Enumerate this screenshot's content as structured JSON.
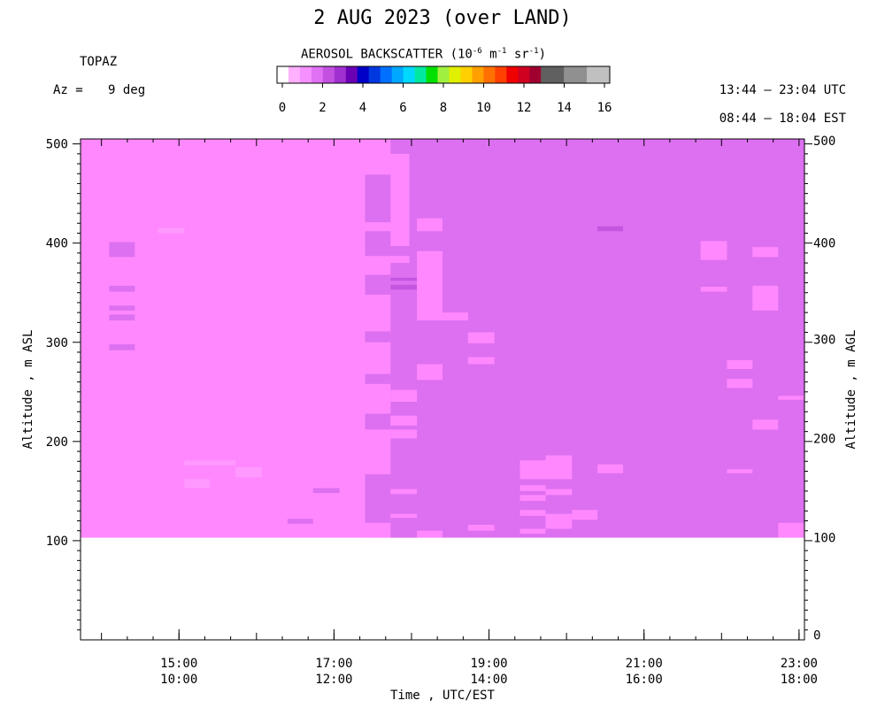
{
  "header": {
    "title": "2 AUG 2023 (over LAND)",
    "instrument": "TOPAZ",
    "azimuth_label": "Az =",
    "azimuth_value": "9 deg",
    "utc_range": "13:44 – 23:04 UTC",
    "est_range": "08:44 – 18:04 EST"
  },
  "colorbar": {
    "title_main": "AEROSOL BACKSCATTER (10",
    "title_exp1": "-6",
    "title_mid1": " m",
    "title_exp2": "-1",
    "title_mid2": " sr",
    "title_exp3": "-1",
    "title_end": ")",
    "tick_labels": [
      "0",
      "2",
      "4",
      "6",
      "8",
      "10",
      "12",
      "14",
      "16"
    ],
    "colors": [
      "#ffffff",
      "#ffb0ff",
      "#f490ff",
      "#e070f4",
      "#c450e0",
      "#a030d0",
      "#6a00b4",
      "#0000c8",
      "#0038e0",
      "#0070ff",
      "#00a8ff",
      "#00d8ff",
      "#00e8a0",
      "#00e000",
      "#a0f040",
      "#e0f000",
      "#ffd000",
      "#ffa000",
      "#ff7000",
      "#ff4000",
      "#f00000",
      "#d00020",
      "#a00030",
      "#606060",
      "#606060",
      "#909090",
      "#909090",
      "#c0c0c0",
      "#c0c0c0"
    ]
  },
  "axes": {
    "xlabel": "Time , UTC/EST",
    "ylabel_left": "Altitude , m ASL",
    "ylabel_right": "Altitude , m AGL",
    "x_ticks_utc": [
      "15:00",
      "17:00",
      "19:00",
      "21:00",
      "23:00"
    ],
    "x_ticks_est": [
      "10:00",
      "12:00",
      "14:00",
      "16:00",
      "18:00"
    ],
    "y_ticks_left": [
      "100",
      "200",
      "300",
      "400",
      "500"
    ],
    "y_ticks_right": [
      "0",
      "100",
      "200",
      "300",
      "400",
      "500"
    ]
  },
  "chart_data": {
    "type": "heatmap",
    "title": "2 AUG 2023 (over LAND)",
    "xlabel": "Time , UTC/EST",
    "ylabel": "Altitude , m ASL",
    "ylabel_right": "Altitude , m AGL",
    "x_unit": "hours UTC",
    "xlim": [
      13.73,
      23.07
    ],
    "ylim": [
      0,
      505
    ],
    "ylim_right": [
      0,
      505
    ],
    "data_bottom_m": 103,
    "colorbar_range": [
      0,
      16
    ],
    "colors": {
      "base": "#ff88ff",
      "medium": "#dd70f0",
      "dark": "#c455e0",
      "light": "#ff99ff"
    },
    "base_layer": [
      {
        "x0": 13.73,
        "x1": 17.97,
        "color": "base"
      },
      {
        "x0": 17.97,
        "x1": 23.07,
        "color": "medium"
      }
    ],
    "cells": [
      {
        "x0": 17.4,
        "x1": 17.73,
        "y0": 103,
        "y1": 118,
        "color": "base"
      },
      {
        "x0": 17.4,
        "x1": 17.73,
        "y0": 118,
        "y1": 167,
        "color": "medium"
      },
      {
        "x0": 17.4,
        "x1": 17.73,
        "y0": 228,
        "y1": 212,
        "color": "medium"
      },
      {
        "x0": 17.4,
        "x1": 17.73,
        "y0": 258,
        "y1": 268,
        "color": "medium"
      },
      {
        "x0": 17.4,
        "x1": 17.73,
        "y0": 300,
        "y1": 311,
        "color": "medium"
      },
      {
        "x0": 17.4,
        "x1": 17.73,
        "y0": 348,
        "y1": 368,
        "color": "medium"
      },
      {
        "x0": 17.4,
        "x1": 17.73,
        "y0": 387,
        "y1": 412,
        "color": "medium"
      },
      {
        "x0": 17.4,
        "x1": 17.73,
        "y0": 421,
        "y1": 469,
        "color": "medium"
      },
      {
        "x0": 17.73,
        "x1": 18.07,
        "y0": 103,
        "y1": 380,
        "color": "medium"
      },
      {
        "x0": 17.73,
        "x1": 18.07,
        "y0": 490,
        "y1": 505,
        "color": "medium"
      },
      {
        "x0": 17.73,
        "x1": 18.07,
        "y0": 387,
        "y1": 397,
        "color": "medium"
      },
      {
        "x0": 17.73,
        "x1": 18.07,
        "y0": 240,
        "y1": 252,
        "color": "base"
      },
      {
        "x0": 17.73,
        "x1": 18.07,
        "y0": 216,
        "y1": 226,
        "color": "base"
      },
      {
        "x0": 17.73,
        "x1": 18.07,
        "y0": 203,
        "y1": 212,
        "color": "base"
      },
      {
        "x0": 17.73,
        "x1": 18.07,
        "y0": 147,
        "y1": 152,
        "color": "base"
      },
      {
        "x0": 17.73,
        "x1": 18.07,
        "y0": 123,
        "y1": 127,
        "color": "base"
      },
      {
        "x0": 17.73,
        "x1": 18.07,
        "y0": 353,
        "y1": 358,
        "color": "dark"
      },
      {
        "x0": 17.73,
        "x1": 18.07,
        "y0": 362,
        "y1": 365,
        "color": "dark"
      },
      {
        "x0": 18.07,
        "x1": 18.4,
        "y0": 103,
        "y1": 110,
        "color": "base"
      },
      {
        "x0": 18.07,
        "x1": 18.4,
        "y0": 262,
        "y1": 278,
        "color": "base"
      },
      {
        "x0": 18.07,
        "x1": 18.4,
        "y0": 322,
        "y1": 392,
        "color": "base"
      },
      {
        "x0": 18.07,
        "x1": 18.4,
        "y0": 412,
        "y1": 425,
        "color": "base"
      },
      {
        "x0": 18.4,
        "x1": 18.73,
        "y0": 322,
        "y1": 330,
        "color": "base"
      },
      {
        "x0": 18.73,
        "x1": 19.07,
        "y0": 278,
        "y1": 285,
        "color": "base"
      },
      {
        "x0": 18.73,
        "x1": 19.07,
        "y0": 299,
        "y1": 310,
        "color": "base"
      },
      {
        "x0": 18.73,
        "x1": 19.07,
        "y0": 110,
        "y1": 116,
        "color": "base"
      },
      {
        "x0": 14.1,
        "x1": 14.43,
        "y0": 292,
        "y1": 298,
        "color": "medium"
      },
      {
        "x0": 14.1,
        "x1": 14.43,
        "y0": 322,
        "y1": 328,
        "color": "medium"
      },
      {
        "x0": 14.1,
        "x1": 14.43,
        "y0": 332,
        "y1": 337,
        "color": "medium"
      },
      {
        "x0": 14.1,
        "x1": 14.43,
        "y0": 351,
        "y1": 357,
        "color": "medium"
      },
      {
        "x0": 14.1,
        "x1": 14.43,
        "y0": 386,
        "y1": 401,
        "color": "medium"
      },
      {
        "x0": 14.73,
        "x1": 15.07,
        "y0": 410,
        "y1": 415,
        "color": "light"
      },
      {
        "x0": 15.07,
        "x1": 15.4,
        "y0": 153,
        "y1": 162,
        "color": "light"
      },
      {
        "x0": 15.07,
        "x1": 15.73,
        "y0": 176,
        "y1": 181,
        "color": "light"
      },
      {
        "x0": 15.73,
        "x1": 16.07,
        "y0": 164,
        "y1": 174,
        "color": "light"
      },
      {
        "x0": 16.4,
        "x1": 16.73,
        "y0": 117,
        "y1": 122,
        "color": "medium"
      },
      {
        "x0": 16.73,
        "x1": 17.07,
        "y0": 148,
        "y1": 153,
        "color": "medium"
      },
      {
        "x0": 19.4,
        "x1": 19.73,
        "y0": 107,
        "y1": 112,
        "color": "base"
      },
      {
        "x0": 19.4,
        "x1": 19.73,
        "y0": 125,
        "y1": 131,
        "color": "base"
      },
      {
        "x0": 19.4,
        "x1": 19.73,
        "y0": 140,
        "y1": 146,
        "color": "base"
      },
      {
        "x0": 19.4,
        "x1": 19.73,
        "y0": 150,
        "y1": 156,
        "color": "base"
      },
      {
        "x0": 19.4,
        "x1": 19.73,
        "y0": 162,
        "y1": 181,
        "color": "base"
      },
      {
        "x0": 19.73,
        "x1": 20.07,
        "y0": 112,
        "y1": 127,
        "color": "base"
      },
      {
        "x0": 19.73,
        "x1": 20.07,
        "y0": 146,
        "y1": 152,
        "color": "base"
      },
      {
        "x0": 19.73,
        "x1": 20.07,
        "y0": 162,
        "y1": 186,
        "color": "base"
      },
      {
        "x0": 20.07,
        "x1": 20.4,
        "y0": 121,
        "y1": 131,
        "color": "base"
      },
      {
        "x0": 20.4,
        "x1": 20.73,
        "y0": 412,
        "y1": 417,
        "color": "dark"
      },
      {
        "x0": 20.4,
        "x1": 20.73,
        "y0": 168,
        "y1": 177,
        "color": "base"
      },
      {
        "x0": 21.73,
        "x1": 22.07,
        "y0": 383,
        "y1": 402,
        "color": "base"
      },
      {
        "x0": 21.73,
        "x1": 22.07,
        "y0": 351,
        "y1": 356,
        "color": "base"
      },
      {
        "x0": 22.07,
        "x1": 22.4,
        "y0": 168,
        "y1": 172,
        "color": "base"
      },
      {
        "x0": 22.07,
        "x1": 22.4,
        "y0": 254,
        "y1": 263,
        "color": "base"
      },
      {
        "x0": 22.07,
        "x1": 22.4,
        "y0": 273,
        "y1": 282,
        "color": "base"
      },
      {
        "x0": 22.4,
        "x1": 22.73,
        "y0": 212,
        "y1": 222,
        "color": "base"
      },
      {
        "x0": 22.4,
        "x1": 22.73,
        "y0": 332,
        "y1": 357,
        "color": "base"
      },
      {
        "x0": 22.4,
        "x1": 22.73,
        "y0": 386,
        "y1": 396,
        "color": "base"
      },
      {
        "x0": 22.73,
        "x1": 23.07,
        "y0": 103,
        "y1": 118,
        "color": "base"
      },
      {
        "x0": 22.73,
        "x1": 23.07,
        "y0": 242,
        "y1": 246,
        "color": "base"
      }
    ]
  }
}
